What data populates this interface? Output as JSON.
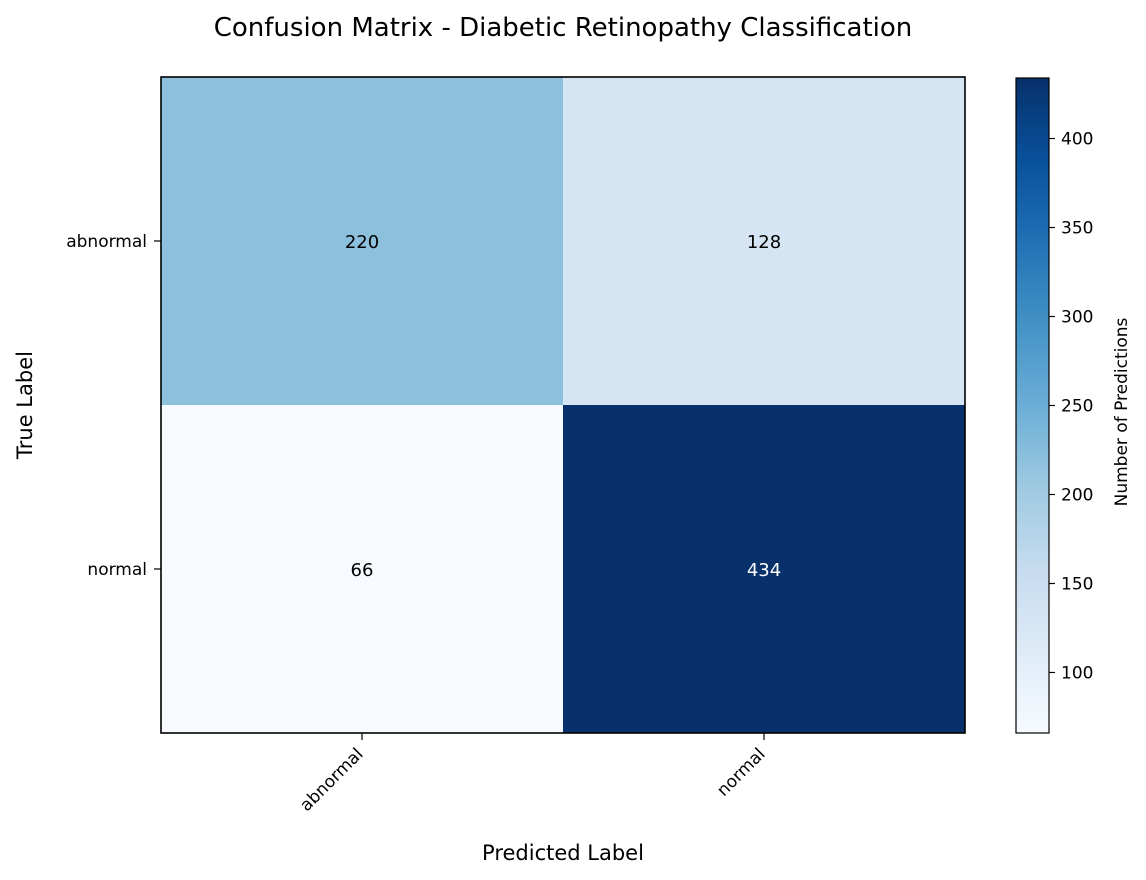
{
  "chart_data": {
    "type": "heatmap",
    "title": "Confusion Matrix - Diabetic Retinopathy Classification",
    "xlabel": "Predicted Label",
    "ylabel": "True Label",
    "x_categories": [
      "abnormal",
      "normal"
    ],
    "y_categories": [
      "abnormal",
      "normal"
    ],
    "matrix": [
      [
        220,
        128
      ],
      [
        66,
        434
      ]
    ],
    "colorbar": {
      "label": "Number of Predictions",
      "range": [
        66,
        434
      ],
      "ticks": [
        100,
        150,
        200,
        250,
        300,
        350,
        400
      ],
      "colormap": "Blues"
    },
    "text_colors": {
      "light": "#ffffff",
      "dark": "#000000"
    }
  }
}
